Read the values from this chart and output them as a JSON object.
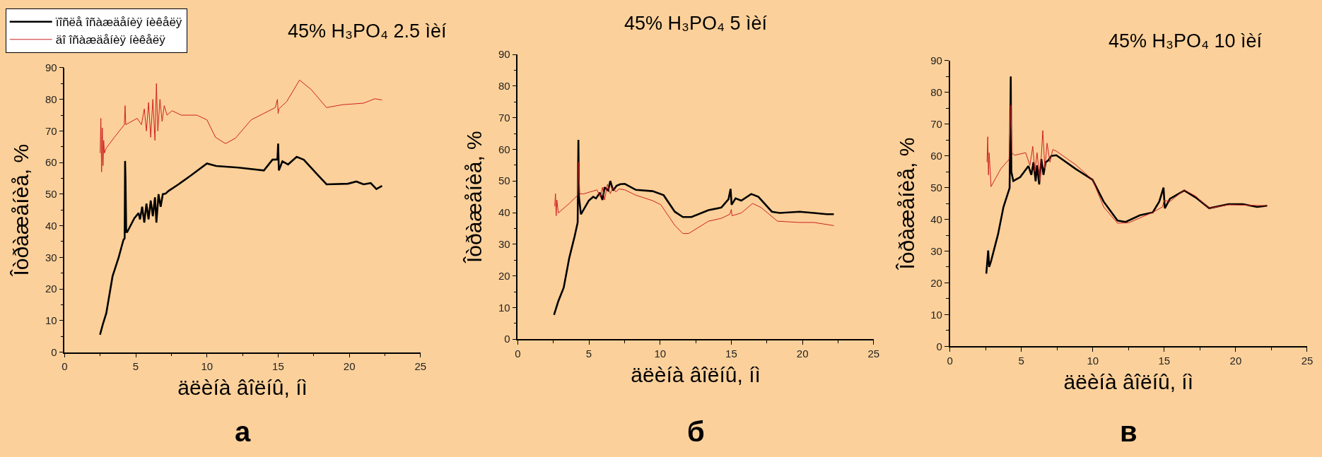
{
  "chart_data": [
    {
      "type": "line",
      "title": "45% H₃PO₄ 2.5 ìèí",
      "xlabel": "äëèíà âîëíû, íì",
      "ylabel": "Îòðàæåíèå, %",
      "xlim": [
        0,
        25
      ],
      "xticks": [
        0,
        5,
        10,
        15,
        20,
        25
      ],
      "ylim": [
        0,
        90
      ],
      "yticks": [
        0,
        10,
        20,
        30,
        40,
        50,
        60,
        70,
        80,
        90
      ],
      "legend": "top left",
      "annotations": [
        "а"
      ],
      "series": [
        {
          "name": "ïîñëå îñàæäåíèÿ íèêåëÿ",
          "color": "#000000",
          "x": [
            2.49,
            2.7,
            2.93,
            3.37,
            3.8,
            4.14,
            4.22,
            4.25,
            4.28,
            4.33,
            4.4,
            4.9,
            5.2,
            5.3,
            5.45,
            5.6,
            5.75,
            5.9,
            6.05,
            6.2,
            6.35,
            6.45,
            6.6,
            6.75,
            6.9,
            7.1,
            7.3,
            8.0,
            8.9,
            10.0,
            10.65,
            12.2,
            14.0,
            14.6,
            14.95,
            15.0,
            15.05,
            15.3,
            15.7,
            16.3,
            16.8,
            17.7,
            18.4,
            19.9,
            20.5,
            21.0,
            21.5,
            21.9,
            22.3
          ],
          "values": [
            5.5,
            9,
            12.3,
            24,
            30,
            35.6,
            36,
            60.5,
            55,
            38,
            38,
            42.4,
            44,
            42,
            46,
            41,
            47,
            42,
            48,
            43,
            49,
            41,
            50,
            46,
            50,
            50.2,
            51,
            53.1,
            56,
            59.7,
            58.9,
            58.4,
            57.5,
            60.9,
            61,
            66,
            57.5,
            60.4,
            59.4,
            61.8,
            60.9,
            56.5,
            53.1,
            53.3,
            54,
            53.1,
            53.5,
            51.6,
            52.6
          ]
        },
        {
          "name": "äî îñàæäåíèÿ íèêåëÿ",
          "color": "#cc2222",
          "x": [
            2.5,
            2.55,
            2.6,
            2.65,
            2.7,
            2.75,
            2.8,
            2.93,
            3.5,
            4.2,
            4.25,
            4.3,
            5.1,
            5.4,
            5.6,
            5.75,
            5.9,
            6.05,
            6.2,
            6.35,
            6.45,
            6.55,
            6.7,
            6.85,
            7.0,
            7.2,
            7.55,
            8.2,
            9.3,
            10.0,
            10.6,
            11.3,
            12.0,
            13.1,
            14.8,
            14.95,
            15.0,
            15.05,
            15.6,
            16.5,
            17.3,
            18.4,
            19.5,
            21.0,
            21.8,
            22.3
          ],
          "values": [
            63,
            74,
            57,
            71,
            59,
            67,
            63,
            64.6,
            68,
            72,
            78,
            72,
            74,
            72,
            77,
            70,
            79,
            68,
            80,
            67,
            85,
            70,
            80,
            73,
            78,
            75,
            76.4,
            75,
            75,
            73.5,
            68,
            66,
            67.7,
            73.5,
            77.4,
            80,
            75.5,
            77,
            79.3,
            86.1,
            83.2,
            77.4,
            78.3,
            78.8,
            80.2,
            79.8
          ]
        }
      ]
    },
    {
      "type": "line",
      "title": "45% H₃PO₄ 5 ìèí",
      "xlabel": "äëèíà âîëíû, íì",
      "ylabel": "Îòðàæåíèå, %",
      "xlim": [
        0,
        25
      ],
      "xticks": [
        0,
        5,
        10,
        15,
        20,
        25
      ],
      "ylim": [
        0,
        90
      ],
      "yticks": [
        0,
        10,
        20,
        30,
        40,
        50,
        60,
        70,
        80,
        90
      ],
      "annotations": [
        "б"
      ],
      "series": [
        {
          "color": "#000000",
          "x": [
            2.55,
            2.85,
            3.23,
            3.62,
            4.0,
            4.21,
            4.26,
            4.3,
            4.44,
            4.99,
            5.3,
            5.5,
            5.77,
            5.95,
            6.1,
            6.35,
            6.5,
            6.7,
            6.94,
            7.2,
            7.52,
            8.3,
            9.47,
            10.25,
            11.03,
            11.6,
            12.2,
            13.4,
            14.3,
            14.8,
            14.95,
            15.02,
            15.3,
            15.7,
            16.4,
            16.9,
            17.85,
            18.4,
            19.8,
            20.8,
            21.7,
            22.2
          ],
          "values": [
            7.7,
            12,
            16.3,
            25.7,
            32.6,
            36.9,
            63,
            45,
            39.5,
            43.8,
            45,
            44.5,
            46.3,
            44,
            48,
            47,
            50,
            47,
            48.5,
            49,
            49.1,
            47.2,
            46.8,
            45.5,
            40.3,
            38.6,
            38.6,
            40.8,
            41.6,
            44.2,
            47.5,
            42.5,
            44.5,
            43.8,
            45.9,
            45,
            40.3,
            39.9,
            40.3,
            39.9,
            39.5,
            39.5
          ]
        },
        {
          "color": "#cc2222",
          "x": [
            2.6,
            2.65,
            2.7,
            2.75,
            2.85,
            3.62,
            4.21,
            4.28,
            4.35,
            4.6,
            5.57,
            5.8,
            5.95,
            6.1,
            6.3,
            6.5,
            6.7,
            6.9,
            7.1,
            7.52,
            8.3,
            9.47,
            10.05,
            11.03,
            11.6,
            12.0,
            13.4,
            14.3,
            14.9,
            15.0,
            15.05,
            15.7,
            16.5,
            17.1,
            18.24,
            19.8,
            20.8,
            22.2
          ],
          "values": [
            42,
            46,
            39,
            44,
            39.9,
            42.9,
            45.5,
            56,
            46,
            45.9,
            47.2,
            45,
            48,
            44,
            49,
            46,
            48,
            46.5,
            47.5,
            47.2,
            45.5,
            43.8,
            42.5,
            36,
            33.4,
            33.4,
            37.3,
            38.2,
            39.5,
            41,
            39,
            39.9,
            42.9,
            41.6,
            37.3,
            36.9,
            36.9,
            35.9
          ]
        }
      ]
    },
    {
      "type": "line",
      "title": "45% H₃PO₄ 10 ìèí",
      "xlabel": "äëèíà âîëíû, íì",
      "ylabel": "Îòðàæåíèå, %",
      "xlim": [
        0,
        25
      ],
      "xticks": [
        0,
        5,
        10,
        15,
        20,
        25
      ],
      "ylim": [
        0,
        90
      ],
      "yticks": [
        0,
        10,
        20,
        30,
        40,
        50,
        60,
        70,
        80,
        90
      ],
      "annotations": [
        "в"
      ],
      "series": [
        {
          "color": "#000000",
          "x": [
            2.55,
            2.68,
            2.75,
            2.88,
            3.37,
            3.75,
            4.18,
            4.26,
            4.3,
            4.44,
            4.92,
            5.5,
            5.7,
            5.85,
            6.0,
            6.1,
            6.25,
            6.4,
            6.55,
            6.7,
            6.87,
            7.1,
            7.45,
            8.8,
            9.98,
            10.76,
            11.73,
            12.3,
            13.3,
            14.2,
            14.65,
            14.95,
            15.04,
            15.4,
            16.4,
            17.2,
            18.15,
            19.5,
            20.5,
            21.5,
            22.2
          ],
          "values": [
            22.9,
            30.2,
            25,
            26.8,
            35.3,
            43.9,
            49.9,
            85,
            55,
            52.1,
            53.3,
            56.8,
            54,
            58,
            52,
            57,
            51,
            59,
            54,
            58,
            58.5,
            60,
            60.2,
            55.9,
            52.5,
            45.6,
            39.6,
            39.2,
            41.3,
            42.2,
            45.6,
            50,
            43.5,
            46.5,
            49.1,
            46.9,
            43.5,
            44.8,
            44.8,
            43.9,
            44.3
          ]
        },
        {
          "color": "#cc2222",
          "x": [
            2.6,
            2.65,
            2.7,
            2.75,
            2.88,
            3.56,
            4.14,
            4.26,
            4.35,
            4.53,
            5.3,
            5.6,
            5.8,
            5.95,
            6.1,
            6.3,
            6.5,
            6.65,
            6.8,
            7.0,
            7.2,
            7.45,
            8.8,
            9.98,
            10.76,
            11.73,
            12.5,
            14.2,
            14.87,
            15.0,
            15.4,
            16.4,
            17.2,
            18.15,
            19.5,
            22.2
          ],
          "values": [
            58,
            66,
            54,
            61,
            50.3,
            55.9,
            58.9,
            76,
            61,
            60.2,
            61,
            57,
            63,
            55,
            61,
            52,
            68,
            56,
            64,
            58,
            62,
            61.5,
            57.2,
            52.5,
            43.9,
            38.8,
            38.9,
            42.2,
            43.9,
            46,
            45.6,
            49.3,
            47.3,
            43.5,
            44.6,
            44.3
          ]
        }
      ]
    }
  ]
}
